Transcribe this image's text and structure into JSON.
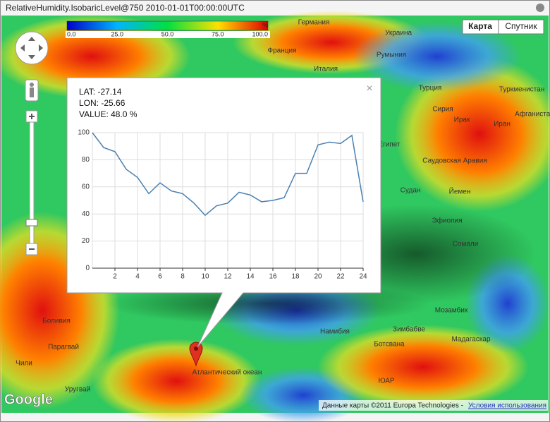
{
  "window_title": "RelativeHumidity.IsobaricLevel@750   2010-01-01T00:00:00UTC",
  "colorbar": {
    "labels": [
      "0.0",
      "25.0",
      "50.0",
      "75.0",
      "100.0"
    ],
    "unit": "%"
  },
  "map_type_buttons": [
    "Карта",
    "Спутник"
  ],
  "places": [
    "Германия",
    "Украина",
    "Франция",
    "Румыния",
    "Италия",
    "Турция",
    "Туркменистан",
    "Сирия",
    "Ирак",
    "Иран",
    "Афганистан",
    "Египет",
    "Саудовская Аравия",
    "Судан",
    "Йемен",
    "Эфиопия",
    "Сомали",
    "Мозамбик",
    "Намибия",
    "Зимбабве",
    "Ботсвана",
    "Мадагаскар",
    "ЮАР",
    "Боливия",
    "Парагвай",
    "Чили",
    "Уругвай",
    "Атлантический океан"
  ],
  "info": {
    "lat": "LAT: -27.14",
    "lon": "LON: -25.66",
    "value": "VALUE: 48.0 %"
  },
  "chart_data": {
    "type": "line",
    "x": [
      0,
      1,
      2,
      3,
      4,
      5,
      6,
      7,
      8,
      9,
      10,
      11,
      12,
      13,
      14,
      15,
      16,
      17,
      18,
      19,
      20,
      21,
      22,
      23,
      24
    ],
    "series": [
      {
        "color": "#4a80b0",
        "values": [
          100,
          89,
          86,
          73,
          67,
          55,
          63,
          57,
          55,
          48,
          39,
          46,
          48,
          56,
          54,
          49,
          50,
          52,
          70,
          70,
          91,
          93,
          92,
          98,
          49
        ]
      }
    ],
    "xlim": [
      0,
      24
    ],
    "xticks": [
      2,
      4,
      6,
      8,
      10,
      12,
      14,
      16,
      18,
      20,
      22,
      24
    ],
    "ylim": [
      0,
      100
    ],
    "yticks": [
      0,
      20,
      40,
      60,
      80,
      100
    ],
    "grid": true
  },
  "logo": "Google",
  "footer": {
    "attribution": "Данные карты ©2011 Europa Technologies - ",
    "terms": "Условия использования"
  }
}
